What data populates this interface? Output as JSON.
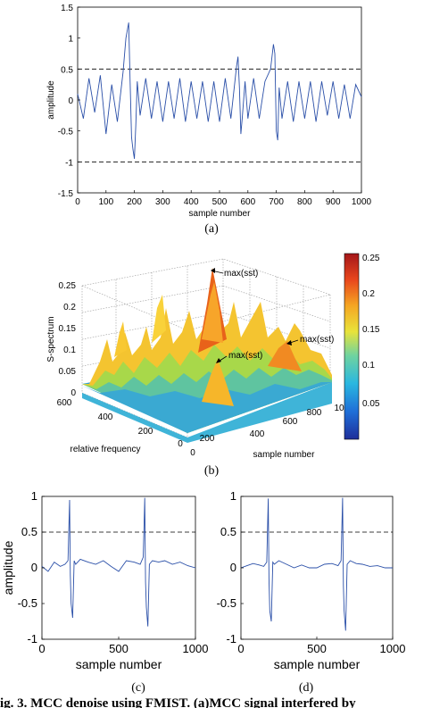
{
  "panel_labels": [
    "(a)",
    "(b)",
    "(c)",
    "(d)"
  ],
  "caption": "ig. 3. MCC denoise using FMIST. (a)MCC signal interfered by",
  "chart_data": [
    {
      "panel": "(a)",
      "type": "line",
      "xlabel": "sample number",
      "ylabel": "amplitude",
      "xlim": [
        0,
        1000
      ],
      "ylim": [
        -1.5,
        1.5
      ],
      "xticks": [
        "0",
        "100",
        "200",
        "300",
        "400",
        "500",
        "600",
        "700",
        "800",
        "900",
        "1000"
      ],
      "yticks": [
        "1.5",
        "1",
        "0.5",
        "0",
        "-0.5",
        "-1",
        "-1.5"
      ],
      "hlines": [
        0.5,
        -1
      ],
      "series_color": "#2a4fa8",
      "x": [
        0,
        20,
        40,
        60,
        80,
        100,
        120,
        140,
        160,
        170,
        180,
        185,
        190,
        195,
        200,
        205,
        210,
        220,
        240,
        260,
        280,
        300,
        320,
        340,
        360,
        380,
        400,
        420,
        440,
        460,
        480,
        500,
        520,
        540,
        560,
        565,
        570,
        575,
        580,
        590,
        600,
        620,
        640,
        660,
        680,
        690,
        695,
        700,
        705,
        710,
        720,
        740,
        760,
        780,
        800,
        820,
        840,
        860,
        880,
        900,
        920,
        940,
        960,
        980,
        1000
      ],
      "y": [
        0.1,
        -0.3,
        0.35,
        -0.2,
        0.4,
        -0.55,
        0.25,
        -0.35,
        0.45,
        1.0,
        1.25,
        0.3,
        -0.6,
        -0.8,
        -0.95,
        -0.4,
        0.3,
        -0.25,
        0.35,
        -0.3,
        0.3,
        -0.35,
        0.3,
        -0.3,
        0.35,
        -0.35,
        0.3,
        -0.3,
        0.3,
        -0.35,
        0.3,
        -0.35,
        0.35,
        -0.3,
        0.55,
        0.7,
        0.2,
        -0.55,
        -0.3,
        0.3,
        -0.3,
        0.35,
        -0.3,
        0.3,
        0.5,
        0.9,
        0.75,
        -0.5,
        -0.65,
        0.2,
        -0.3,
        0.3,
        -0.35,
        0.3,
        -0.3,
        0.3,
        -0.35,
        0.3,
        -0.25,
        0.3,
        -0.3,
        0.25,
        -0.3,
        0.25,
        0.05
      ]
    },
    {
      "panel": "(b)",
      "type": "surface",
      "zlabel": "S-spectrum",
      "xlabel": "sample number",
      "ylabel": "relative frequency",
      "zticks": [
        "0",
        "0.05",
        "0.1",
        "0.15",
        "0.2",
        "0.25"
      ],
      "xticks": [
        "0",
        "200",
        "400",
        "600",
        "800",
        "10"
      ],
      "yticks": [
        "0",
        "200",
        "400",
        "600"
      ],
      "colorbar_ticks": [
        "0.25",
        "0.2",
        "0.15",
        "0.1",
        "0.05"
      ],
      "annotations": [
        "max(sst)",
        "max(sst)",
        "max(sst)"
      ],
      "peaks": [
        {
          "x": 190,
          "y": 150,
          "z": 0.26
        },
        {
          "x": 690,
          "y": 120,
          "z": 0.16
        },
        {
          "x": 620,
          "y": 350,
          "z": 0.12
        }
      ]
    },
    {
      "panel": "(c)",
      "type": "line",
      "xlabel": "sample number",
      "ylabel": "amplitude",
      "xlim": [
        0,
        1000
      ],
      "ylim": [
        -1,
        1
      ],
      "xticks": [
        "0",
        "500",
        "1000"
      ],
      "yticks": [
        "1",
        "0.5",
        "0",
        "-0.5",
        "-1"
      ],
      "hlines": [
        0.5
      ],
      "series_color": "#2a4fa8",
      "x": [
        0,
        40,
        80,
        120,
        150,
        170,
        180,
        185,
        190,
        200,
        210,
        220,
        250,
        300,
        350,
        400,
        450,
        500,
        550,
        600,
        640,
        660,
        670,
        675,
        680,
        690,
        700,
        720,
        760,
        800,
        850,
        900,
        950,
        1000
      ],
      "y": [
        0.02,
        -0.05,
        0.08,
        0.02,
        0.05,
        0.1,
        0.95,
        -0.1,
        -0.5,
        -0.7,
        0.1,
        0.05,
        0.12,
        0.08,
        0.05,
        0.1,
        0.02,
        -0.05,
        0.1,
        0.08,
        0.05,
        0.15,
        0.98,
        -0.2,
        -0.55,
        -0.82,
        0.05,
        0.1,
        0.08,
        0.1,
        0.05,
        0.08,
        0.03,
        0.0
      ]
    },
    {
      "panel": "(d)",
      "type": "line",
      "xlabel": "sample number",
      "ylabel": "amplitude",
      "xlim": [
        0,
        1000
      ],
      "ylim": [
        -1,
        1
      ],
      "xticks": [
        "0",
        "500",
        "1000"
      ],
      "yticks": [
        "1",
        "0.5",
        "0",
        "-0.5",
        "-1"
      ],
      "hlines": [
        0.5
      ],
      "series_color": "#2a4fa8",
      "x": [
        0,
        40,
        80,
        120,
        150,
        170,
        180,
        185,
        190,
        200,
        210,
        220,
        250,
        300,
        350,
        400,
        450,
        500,
        550,
        600,
        640,
        660,
        670,
        675,
        680,
        690,
        700,
        720,
        760,
        800,
        850,
        900,
        950,
        1000
      ],
      "y": [
        0.0,
        0.03,
        0.06,
        0.04,
        0.02,
        0.08,
        0.97,
        -0.15,
        -0.6,
        -0.75,
        0.08,
        0.05,
        0.1,
        0.05,
        0.0,
        0.04,
        0.0,
        0.0,
        0.05,
        0.06,
        0.03,
        0.1,
        0.98,
        -0.25,
        -0.6,
        -0.88,
        0.05,
        0.1,
        0.06,
        0.05,
        0.02,
        0.03,
        0.0,
        0.0
      ]
    }
  ]
}
